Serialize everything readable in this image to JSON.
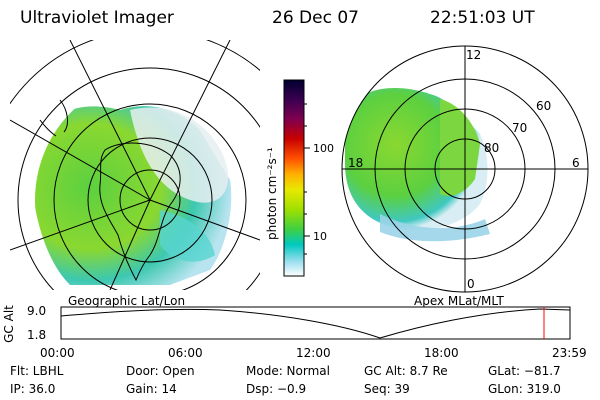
{
  "header": {
    "instrument": "Ultraviolet Imager",
    "date": "26 Dec 07",
    "time": "22:51:03 UT"
  },
  "left_panel": {
    "label": "Geographic Lat/Lon"
  },
  "right_panel": {
    "label": "Apex MLat/MLT",
    "mlt_labels": [
      "12",
      "18",
      "6",
      "0"
    ],
    "lat_labels": [
      "60",
      "70",
      "80"
    ]
  },
  "colorbar": {
    "unit_label": "photon cm⁻²s⁻¹",
    "ticks": [
      "100",
      "10"
    ],
    "colors": [
      "#000030",
      "#3a0050",
      "#800050",
      "#c80000",
      "#ff5000",
      "#ffb000",
      "#e8e800",
      "#a0e000",
      "#40d040",
      "#00c8c0",
      "#a0e0f0",
      "#ffffff"
    ]
  },
  "altitude_plot": {
    "axis_label": "GC Alt",
    "y_ticks": [
      "9.0",
      "1.8"
    ],
    "x_ticks": [
      "00:00",
      "06:00",
      "12:00",
      "18:00",
      "23:59"
    ],
    "marker_color": "#ff0000"
  },
  "info": {
    "filter": "Flt: LBHL",
    "door": "Door: Open",
    "mode": "Mode: Normal",
    "gc_alt": "GC Alt: 8.7 Re",
    "glat": "GLat: −81.7",
    "ip": "IP: 36.0",
    "gain": "Gain: 14",
    "dsp": "Dsp:    −0.9",
    "seq": "Seq: 39",
    "glon": "GLon: 319.0"
  }
}
